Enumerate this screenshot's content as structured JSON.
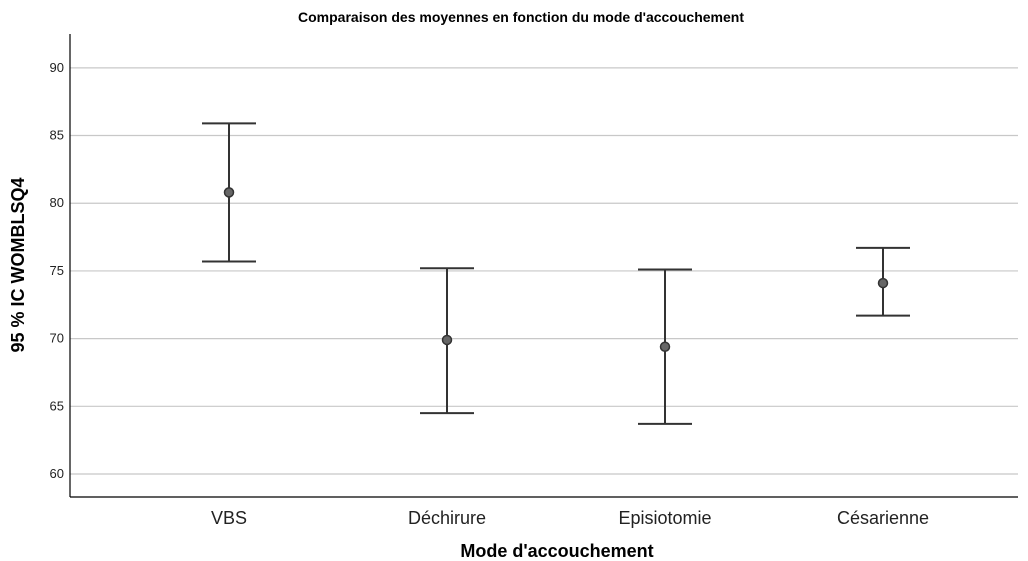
{
  "chart_data": {
    "type": "errorbar",
    "title": "Comparaison des moyennes en fonction du mode d'accouchement",
    "xlabel": "Mode d'accouchement",
    "ylabel": "95 % IC WOMBLSQ4",
    "ylim": [
      58.3,
      92.5
    ],
    "yticks": [
      60,
      65,
      70,
      75,
      80,
      85,
      90
    ],
    "grid": true,
    "categories": [
      "VBS",
      "Déchirure",
      "Episiotomie",
      "Césarienne"
    ],
    "series": [
      {
        "means": [
          80.8,
          69.9,
          69.4,
          74.1
        ],
        "lower": [
          75.7,
          64.5,
          63.7,
          71.7
        ],
        "upper": [
          85.9,
          75.2,
          75.1,
          76.7
        ]
      }
    ],
    "colors": {
      "marker": "#666666",
      "line": "#333333",
      "grid": "#c8c8c8"
    }
  }
}
